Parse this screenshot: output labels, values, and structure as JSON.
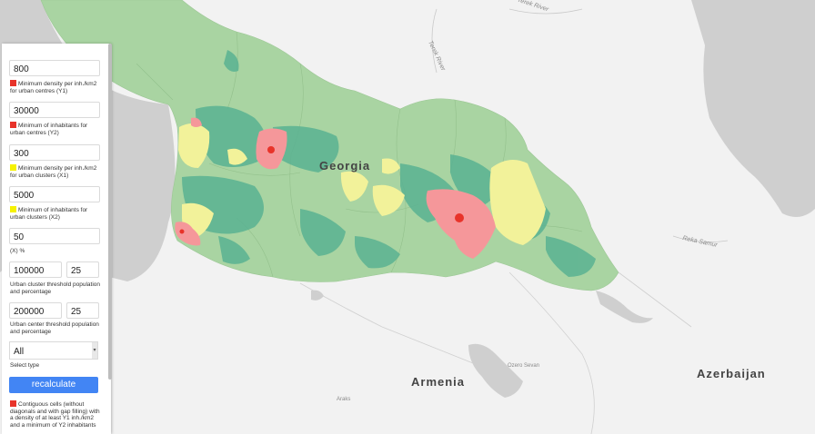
{
  "map": {
    "labels": {
      "georgia": "Georgia",
      "armenia": "Armenia",
      "azerbaijan": "Azerbaijan",
      "river_terek_top": "Terek River",
      "river_terek_mid": "Terek River",
      "river_samur": "Reka Samur",
      "lake_sevan": "Ozero Sevan",
      "place_small": "Araks"
    },
    "colors": {
      "background": "#f2f2f2",
      "sea": "#cfcfcf",
      "rural": "#a9d4a2",
      "urban_center": "#f5979a",
      "urban_cluster": "#f2f29a",
      "semi_dense": "#5ab292",
      "center_swatch": "#e8332a",
      "cluster_swatch": "#f6f200",
      "button": "#4285f4"
    }
  },
  "panel": {
    "y1_value": "800",
    "y1_desc": "Minimum density per inh./km2 for urban centres (Y1)",
    "y2_value": "30000",
    "y2_desc": "Minimum of inhabitants for urban centres (Y2)",
    "x1_value": "300",
    "x1_desc": "Minimum density per inh./km2 for urban clusters (X1)",
    "x2_value": "5000",
    "x2_desc": "Minimum of inhabitants for urban clusters (X2)",
    "x_value": "50",
    "x_desc": "(X) %",
    "cluster_pop": "100000",
    "cluster_pct": "25",
    "cluster_desc": "Urban cluster threshold population and percentage",
    "center_pop": "200000",
    "center_pct": "25",
    "center_desc": "Urban center threshold population and percentage",
    "type_value": "All",
    "type_desc": "Select type",
    "recalculate": "recalculate",
    "legend_desc": "Contiguous cells (without diagonals and with gap filling) with a density of at least Y1 inh./km2 and a minimum of Y2 inhabitants"
  }
}
